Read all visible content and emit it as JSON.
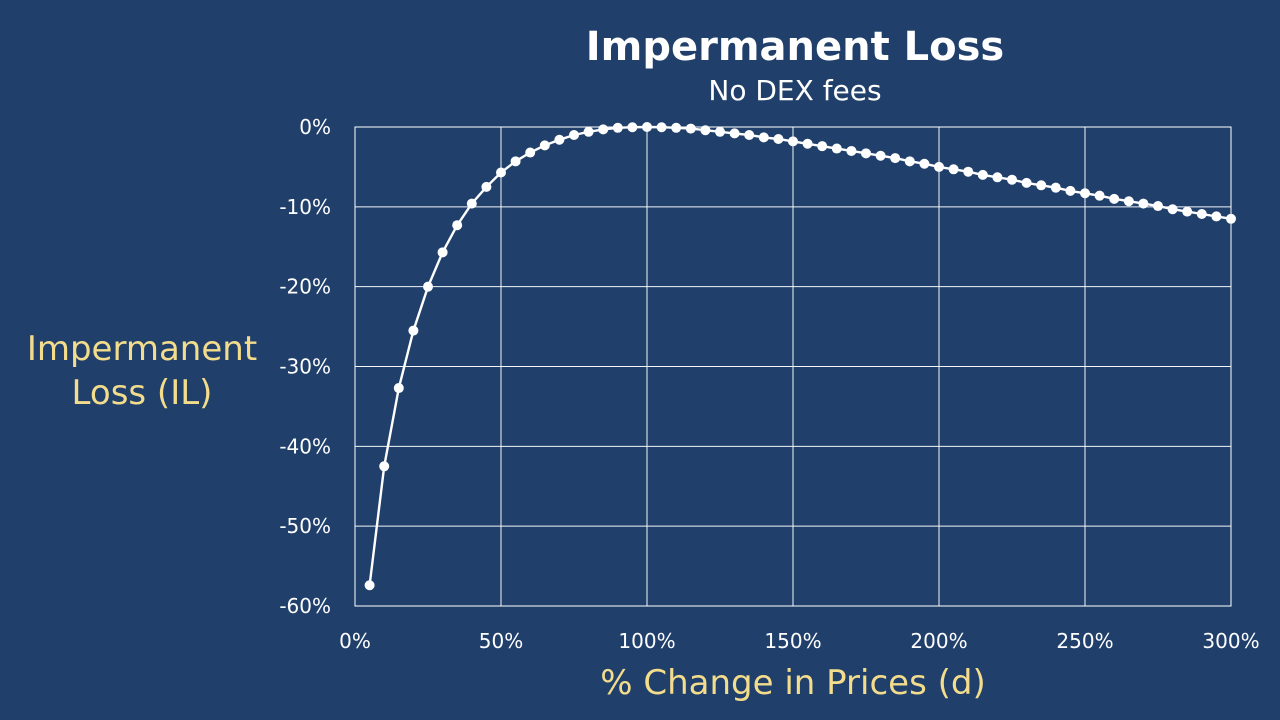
{
  "chart_data": {
    "type": "line",
    "title": "Impermanent Loss",
    "subtitle": "No DEX fees",
    "xlabel": "% Change in Prices (d)",
    "ylabel_lines": [
      "Impermanent",
      "Loss (IL)"
    ],
    "xlim": [
      0,
      300
    ],
    "ylim": [
      -60,
      0
    ],
    "x_ticks": [
      0,
      50,
      100,
      150,
      200,
      250,
      300
    ],
    "x_tick_labels": [
      "0%",
      "50%",
      "100%",
      "150%",
      "200%",
      "250%",
      "300%"
    ],
    "y_ticks": [
      0,
      -10,
      -20,
      -30,
      -40,
      -50,
      -60
    ],
    "y_tick_labels": [
      "0%",
      "-10%",
      "-20%",
      "-30%",
      "-40%",
      "-50%",
      "-60%"
    ],
    "grid": true,
    "marker": "circle",
    "colors": {
      "background": "#20406b",
      "series": "#ffffff",
      "grid": "#ffffff",
      "axis_title": "#f3dc8c"
    },
    "series": [
      {
        "x": [
          5,
          10,
          15,
          20,
          25,
          30,
          35,
          40,
          45,
          50,
          55,
          60,
          65,
          70,
          75,
          80,
          85,
          90,
          95,
          100,
          105,
          110,
          115,
          120,
          125,
          130,
          135,
          140,
          145,
          150,
          155,
          160,
          165,
          170,
          175,
          180,
          185,
          190,
          195,
          200,
          205,
          210,
          215,
          220,
          225,
          230,
          235,
          240,
          245,
          250,
          255,
          260,
          265,
          270,
          275,
          280,
          285,
          290,
          295,
          300
        ],
        "values": [
          -57.4,
          -42.5,
          -32.7,
          -25.5,
          -20.0,
          -15.7,
          -12.3,
          -9.6,
          -7.5,
          -5.7,
          -4.3,
          -3.2,
          -2.3,
          -1.6,
          -1.0,
          -0.6,
          -0.3,
          -0.1,
          -0.03,
          0.0,
          -0.03,
          -0.1,
          -0.2,
          -0.4,
          -0.6,
          -0.8,
          -1.0,
          -1.3,
          -1.5,
          -1.8,
          -2.1,
          -2.4,
          -2.7,
          -3.0,
          -3.3,
          -3.6,
          -3.9,
          -4.3,
          -4.6,
          -5.0,
          -5.3,
          -5.6,
          -6.0,
          -6.3,
          -6.6,
          -7.0,
          -7.3,
          -7.6,
          -8.0,
          -8.3,
          -8.6,
          -9.0,
          -9.3,
          -9.6,
          -9.9,
          -10.3,
          -10.6,
          -10.9,
          -11.2,
          -11.5
        ]
      }
    ]
  }
}
